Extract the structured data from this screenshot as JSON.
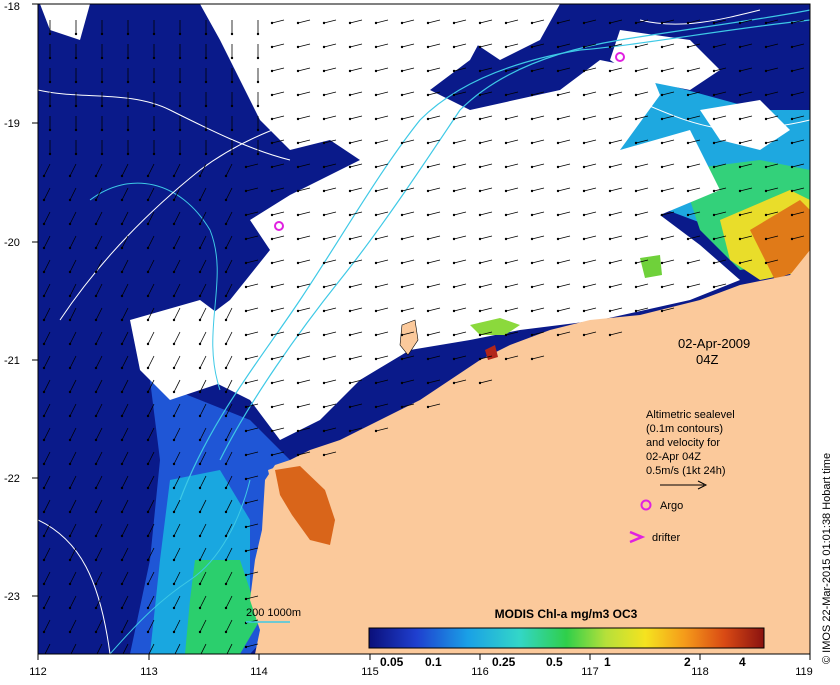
{
  "map": {
    "x_ticks": [
      "112",
      "113",
      "114",
      "115",
      "116",
      "117",
      "118",
      "119"
    ],
    "y_ticks": [
      "-18",
      "-19",
      "-20",
      "-21",
      "-22",
      "-23"
    ],
    "date": "02-Apr-2009",
    "time": "04Z",
    "legend_lines": [
      "Altimetric sealevel",
      "(0.1m contours)",
      "and velocity for",
      "02-Apr 04Z",
      "0.5m/s (1kt 24h)"
    ],
    "argo_label": "Argo",
    "drifter_label": "drifter",
    "bathy_label": "200  1000m",
    "colorbar_title": "MODIS Chl-a mg/m3 OC3",
    "colorbar_ticks": [
      "0.05",
      "0.1",
      "0.25",
      "0.5",
      "1",
      "2",
      "4"
    ],
    "credit": "© IMOS 22-Mar-2015 01:01:38 Hobart time",
    "colors": {
      "ocean_low": "#0a1a8a",
      "cloud": "#ffffff",
      "land": "#fbc99b",
      "contour": "#ffffff",
      "bathymetry": "#3ec9e6",
      "argo_marker": "#e020e0",
      "drifter_marker": "#e020e0"
    }
  }
}
